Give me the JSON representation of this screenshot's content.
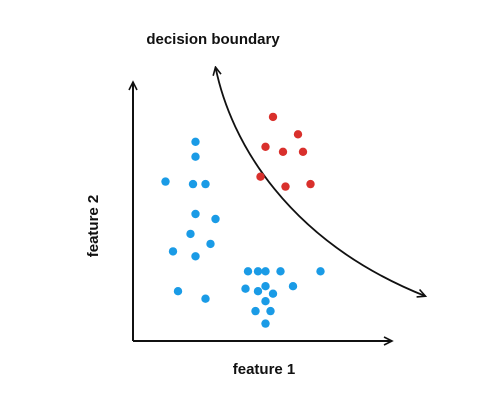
{
  "chart_data": {
    "type": "scatter",
    "title": "",
    "xlabel": "feature 1",
    "ylabel": "feature 2",
    "annotation": "decision boundary",
    "xlim": [
      0,
      10
    ],
    "ylim": [
      0,
      10
    ],
    "grid": false,
    "axes_arrows": true,
    "series": [
      {
        "color": "#1a9be6",
        "points": [
          [
            1.3,
            6.4
          ],
          [
            2.5,
            8.0
          ],
          [
            2.5,
            7.4
          ],
          [
            2.4,
            6.3
          ],
          [
            2.9,
            6.3
          ],
          [
            2.5,
            5.1
          ],
          [
            3.3,
            4.9
          ],
          [
            2.3,
            4.3
          ],
          [
            3.1,
            3.9
          ],
          [
            1.6,
            3.6
          ],
          [
            2.5,
            3.4
          ],
          [
            1.8,
            2.0
          ],
          [
            2.9,
            1.7
          ],
          [
            4.6,
            2.8
          ],
          [
            4.5,
            2.1
          ],
          [
            5.0,
            2.8
          ],
          [
            5.3,
            2.8
          ],
          [
            5.9,
            2.8
          ],
          [
            5.3,
            2.2
          ],
          [
            5.0,
            2.0
          ],
          [
            5.6,
            1.9
          ],
          [
            5.3,
            1.6
          ],
          [
            6.4,
            2.2
          ],
          [
            7.5,
            2.8
          ],
          [
            4.9,
            1.2
          ],
          [
            5.5,
            1.2
          ],
          [
            5.3,
            0.7
          ]
        ]
      },
      {
        "color": "#d9302c",
        "points": [
          [
            5.6,
            9.0
          ],
          [
            6.6,
            8.3
          ],
          [
            5.3,
            7.8
          ],
          [
            6.0,
            7.6
          ],
          [
            6.8,
            7.6
          ],
          [
            5.1,
            6.6
          ],
          [
            6.1,
            6.2
          ],
          [
            7.1,
            6.3
          ]
        ]
      }
    ],
    "boundary": {
      "color": "#111111",
      "points": [
        [
          3.3,
          11.0
        ],
        [
          3.9,
          8.0
        ],
        [
          6.2,
          4.0
        ],
        [
          11.7,
          1.8
        ]
      ]
    }
  }
}
